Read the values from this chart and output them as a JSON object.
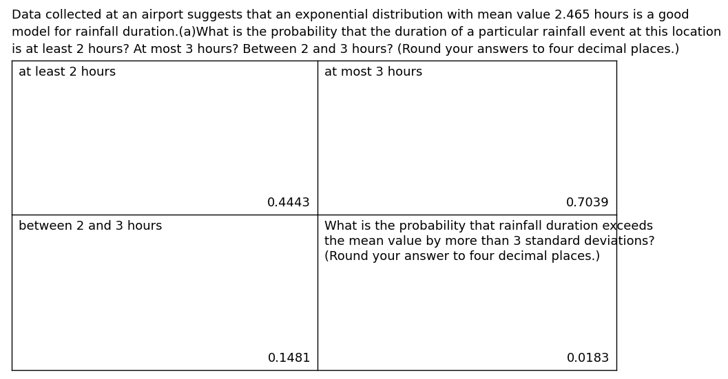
{
  "header_text": "Data collected at an airport suggests that an exponential distribution with mean value 2.465 hours is a good\nmodel for rainfall duration.(a)What is the probability that the duration of a particular rainfall event at this location\nis at least 2 hours? At most 3 hours? Between 2 and 3 hours? (Round your answers to four decimal places.)",
  "cell_labels": [
    [
      "at least 2 hours",
      "at most 3 hours"
    ],
    [
      "between 2 and 3 hours",
      "What is the probability that rainfall duration exceeds\nthe mean value by more than 3 standard deviations?\n(Round your answer to four decimal places.)"
    ]
  ],
  "cell_values": [
    [
      "0.4443",
      "0.7039"
    ],
    [
      "0.1481",
      "0.0183"
    ]
  ],
  "bg_color": "#ffffff",
  "text_color": "#000000",
  "border_color": "#000000",
  "header_fontsize": 13.0,
  "label_fontsize": 13.0,
  "value_fontsize": 13.0
}
